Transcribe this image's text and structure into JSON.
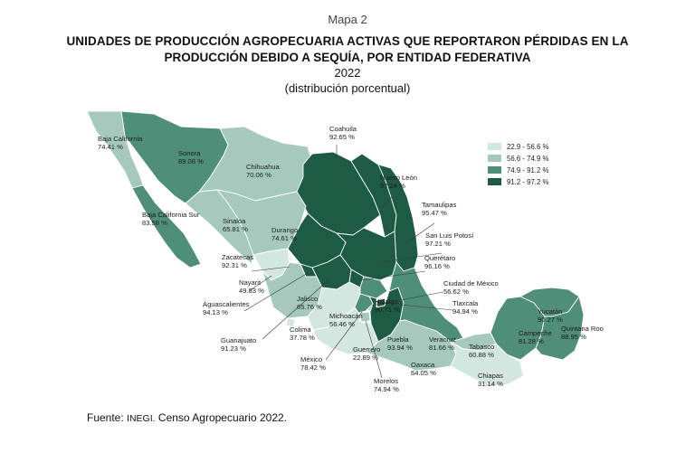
{
  "header": {
    "map_number": "Mapa 2",
    "title_line1": "UNIDADES DE PRODUCCIÓN AGROPECUARIA ACTIVAS QUE REPORTARON PÉRDIDAS EN LA",
    "title_line2": "PRODUCCIÓN DEBIDO A SEQUÍA, POR ENTIDAD FEDERATIVA",
    "year": "2022",
    "subtitle": "(distribución porcentual)"
  },
  "legend": {
    "items": [
      {
        "range": "22.9 - 56.6 %",
        "color": "#d3e6df"
      },
      {
        "range": "56.6 - 74.9 %",
        "color": "#a5cabd"
      },
      {
        "range": "74.9 - 91.2 %",
        "color": "#4f8e78"
      },
      {
        "range": "91.2 - 97.2 %",
        "color": "#1e5b44"
      }
    ]
  },
  "states": [
    {
      "name": "Baja California",
      "value": "74.41 %",
      "class": 1
    },
    {
      "name": "Sonora",
      "value": "89.08 %",
      "class": 2
    },
    {
      "name": "Chihuahua",
      "value": "70.06 %",
      "class": 1
    },
    {
      "name": "Coahuila",
      "value": "92.65 %",
      "class": 3
    },
    {
      "name": "Nuevo León",
      "value": "97.24 %",
      "class": 3
    },
    {
      "name": "Tamaulipas",
      "value": "95.47 %",
      "class": 3
    },
    {
      "name": "Baja California Sur",
      "value": "83.58 %",
      "class": 2
    },
    {
      "name": "Sinaloa",
      "value": "65.81 %",
      "class": 1
    },
    {
      "name": "Durango",
      "value": "74.61 %",
      "class": 1
    },
    {
      "name": "San Luis Potosí",
      "value": "97.21 %",
      "class": 3
    },
    {
      "name": "Zacatecas",
      "value": "92.31 %",
      "class": 3
    },
    {
      "name": "Querétaro",
      "value": "96.16 %",
      "class": 3
    },
    {
      "name": "Nayarit",
      "value": "49.83 %",
      "class": 0
    },
    {
      "name": "Ciudad de México",
      "value": "56.62 %",
      "class": 1
    },
    {
      "name": "Aguascalientes",
      "value": "94.13 %",
      "class": 3
    },
    {
      "name": "Jalisco",
      "value": "65.76 %",
      "class": 1
    },
    {
      "name": "Hidalgo",
      "value": "90.71 %",
      "class": 2
    },
    {
      "name": "Tlaxcala",
      "value": "94.94 %",
      "class": 3
    },
    {
      "name": "Michoacán",
      "value": "56.46 %",
      "class": 0
    },
    {
      "name": "Puebla",
      "value": "93.94 %",
      "class": 3
    },
    {
      "name": "Veracruz",
      "value": "81.66 %",
      "class": 2
    },
    {
      "name": "Yucatán",
      "value": "90.27 %",
      "class": 2
    },
    {
      "name": "Quintana Roo",
      "value": "88.95 %",
      "class": 2
    },
    {
      "name": "Campeche",
      "value": "81.28 %",
      "class": 2
    },
    {
      "name": "Tabasco",
      "value": "60.88 %",
      "class": 1
    },
    {
      "name": "Colima",
      "value": "37.78 %",
      "class": 0
    },
    {
      "name": "Guanajuato",
      "value": "91.23 %",
      "class": 3
    },
    {
      "name": "México",
      "value": "78.42 %",
      "class": 2
    },
    {
      "name": "Guerrero",
      "value": "22.89 %",
      "class": 0
    },
    {
      "name": "Oaxaca",
      "value": "64.05 %",
      "class": 1
    },
    {
      "name": "Morelos",
      "value": "74.94 %",
      "class": 1
    },
    {
      "name": "Chiapas",
      "value": "31.14 %",
      "class": 0
    }
  ],
  "source": {
    "prefix": "Fuente:",
    "org": "INEGI.",
    "text": "Censo Agropecuario 2022."
  }
}
